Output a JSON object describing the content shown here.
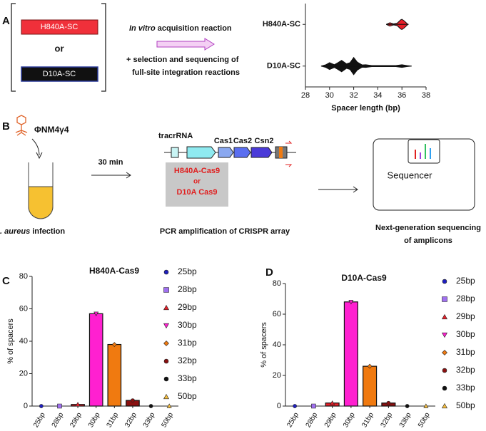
{
  "panel_labels": [
    "A",
    "B",
    "C",
    "D"
  ],
  "panel_a": {
    "sample_1": "H840A-SC",
    "or": "or",
    "sample_2": "D10A-SC",
    "reaction_italic": "In vitro",
    "reaction_rest": "acquisition reaction",
    "step_2_line_1": "+ selection and sequencing of",
    "step_2_line_2": "full-site integration reactions"
  },
  "panel_b": {
    "phage": "ΦNM4γ4",
    "infection_italic": ". aureus",
    "infection_rest": "infection",
    "time": "30 min",
    "tracr": "tracrRNA",
    "cas1": "Cas1",
    "cas2": "Cas2",
    "csn2": "Csn2",
    "variant_1": "H840A-Cas9",
    "variant_or": "or",
    "variant_2": "D10A Cas9",
    "sequencer": "Sequencer",
    "pcr": "PCR amplification of CRISPR array",
    "ngs_line_1": "Next-generation sequencing",
    "ngs_line_2": "of amplicons"
  },
  "chart_data": [
    {
      "type": "violin",
      "xlabel": "Spacer length (bp)",
      "xlim": [
        28,
        38
      ],
      "xticks": [
        28,
        30,
        32,
        34,
        36,
        38
      ],
      "violins": [
        {
          "label": "H840A-SC",
          "color": "#e8202a",
          "x": [
            34.7,
            35,
            35.3,
            35.6,
            35.9,
            36,
            36.2,
            36.5
          ],
          "density": [
            0,
            0.15,
            0.05,
            0.1,
            0.4,
            0.45,
            0.3,
            0
          ]
        },
        {
          "label": "D10A-SC",
          "color": "#111111",
          "x": [
            29.3,
            29.7,
            30,
            30.4,
            30.7,
            31,
            31.4,
            31.7,
            32,
            32.3,
            32.7,
            33,
            33.5,
            34,
            35,
            35.5,
            36,
            36.4,
            36.8
          ],
          "density": [
            0,
            0.12,
            0.3,
            0.12,
            0.3,
            0.5,
            0.2,
            0.3,
            0.75,
            0.35,
            0.1,
            0.12,
            0.05,
            0.05,
            0.05,
            0.05,
            0.12,
            0.05,
            0
          ]
        }
      ]
    },
    {
      "type": "bar",
      "title": "H840A-Cas9",
      "ylabel": "% of spacers",
      "categories": [
        "25bp",
        "28bp",
        "29bp",
        "30bp",
        "31bp",
        "32bp",
        "33bp",
        "50bp"
      ],
      "values": [
        0,
        0,
        1,
        57,
        38,
        3.5,
        0,
        0
      ],
      "colors": [
        "#1f1fbf",
        "#a070f0",
        "#e8202a",
        "#ff20d0",
        "#f07a10",
        "#8a1010",
        "#111111",
        "#f8c040"
      ],
      "markers": [
        "circle",
        "square",
        "triangle",
        "triangle-down",
        "diamond",
        "circle",
        "circle",
        "triangle"
      ],
      "ylim": [
        0,
        80
      ],
      "yticks": [
        0,
        20,
        40,
        60,
        80
      ]
    },
    {
      "type": "bar",
      "title": "D10A-Cas9",
      "ylabel": "% of spacers",
      "categories": [
        "25bp",
        "28bp",
        "29bp",
        "30bp",
        "31bp",
        "32bp",
        "33bp",
        "50bp"
      ],
      "values": [
        0,
        0,
        2,
        68,
        26,
        2,
        0,
        0
      ],
      "colors": [
        "#1f1fbf",
        "#a070f0",
        "#e8202a",
        "#ff20d0",
        "#f07a10",
        "#8a1010",
        "#111111",
        "#f8c040"
      ],
      "markers": [
        "circle",
        "square",
        "triangle",
        "triangle-down",
        "diamond",
        "circle",
        "circle",
        "triangle"
      ],
      "ylim": [
        0,
        80
      ],
      "yticks": [
        0,
        20,
        40,
        60,
        80
      ]
    }
  ]
}
